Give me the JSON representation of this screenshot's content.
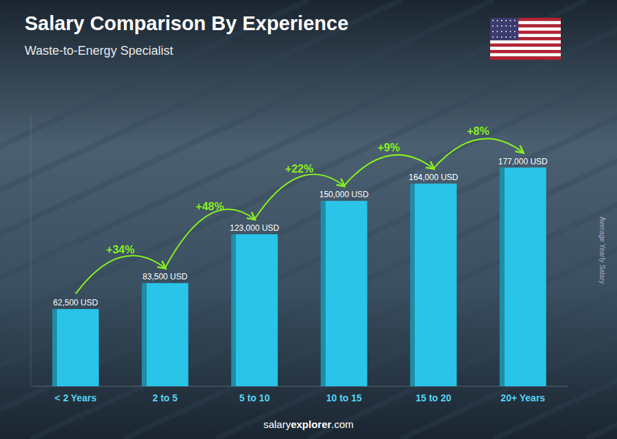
{
  "chart_data": {
    "type": "bar",
    "title": "Salary Comparison By Experience",
    "subtitle": "Waste-to-Energy Specialist",
    "ylabel": "Average Yearly Salary",
    "categories": [
      "< 2 Years",
      "2 to 5",
      "5 to 10",
      "10 to 15",
      "15 to 20",
      "20+ Years"
    ],
    "values": [
      62500,
      83500,
      123000,
      150000,
      164000,
      177000
    ],
    "value_labels": [
      "62,500 USD",
      "83,500 USD",
      "123,000 USD",
      "150,000 USD",
      "164,000 USD",
      "177,000 USD"
    ],
    "data_labels": true,
    "annotations": [
      "+34%",
      "+48%",
      "+22%",
      "+9%",
      "+8%"
    ],
    "footer": [
      "salary",
      "explorer",
      ".com"
    ],
    "color": "#29c4e8",
    "ylim": [
      0,
      220000
    ],
    "tick_labels": "x",
    "grid": false
  }
}
